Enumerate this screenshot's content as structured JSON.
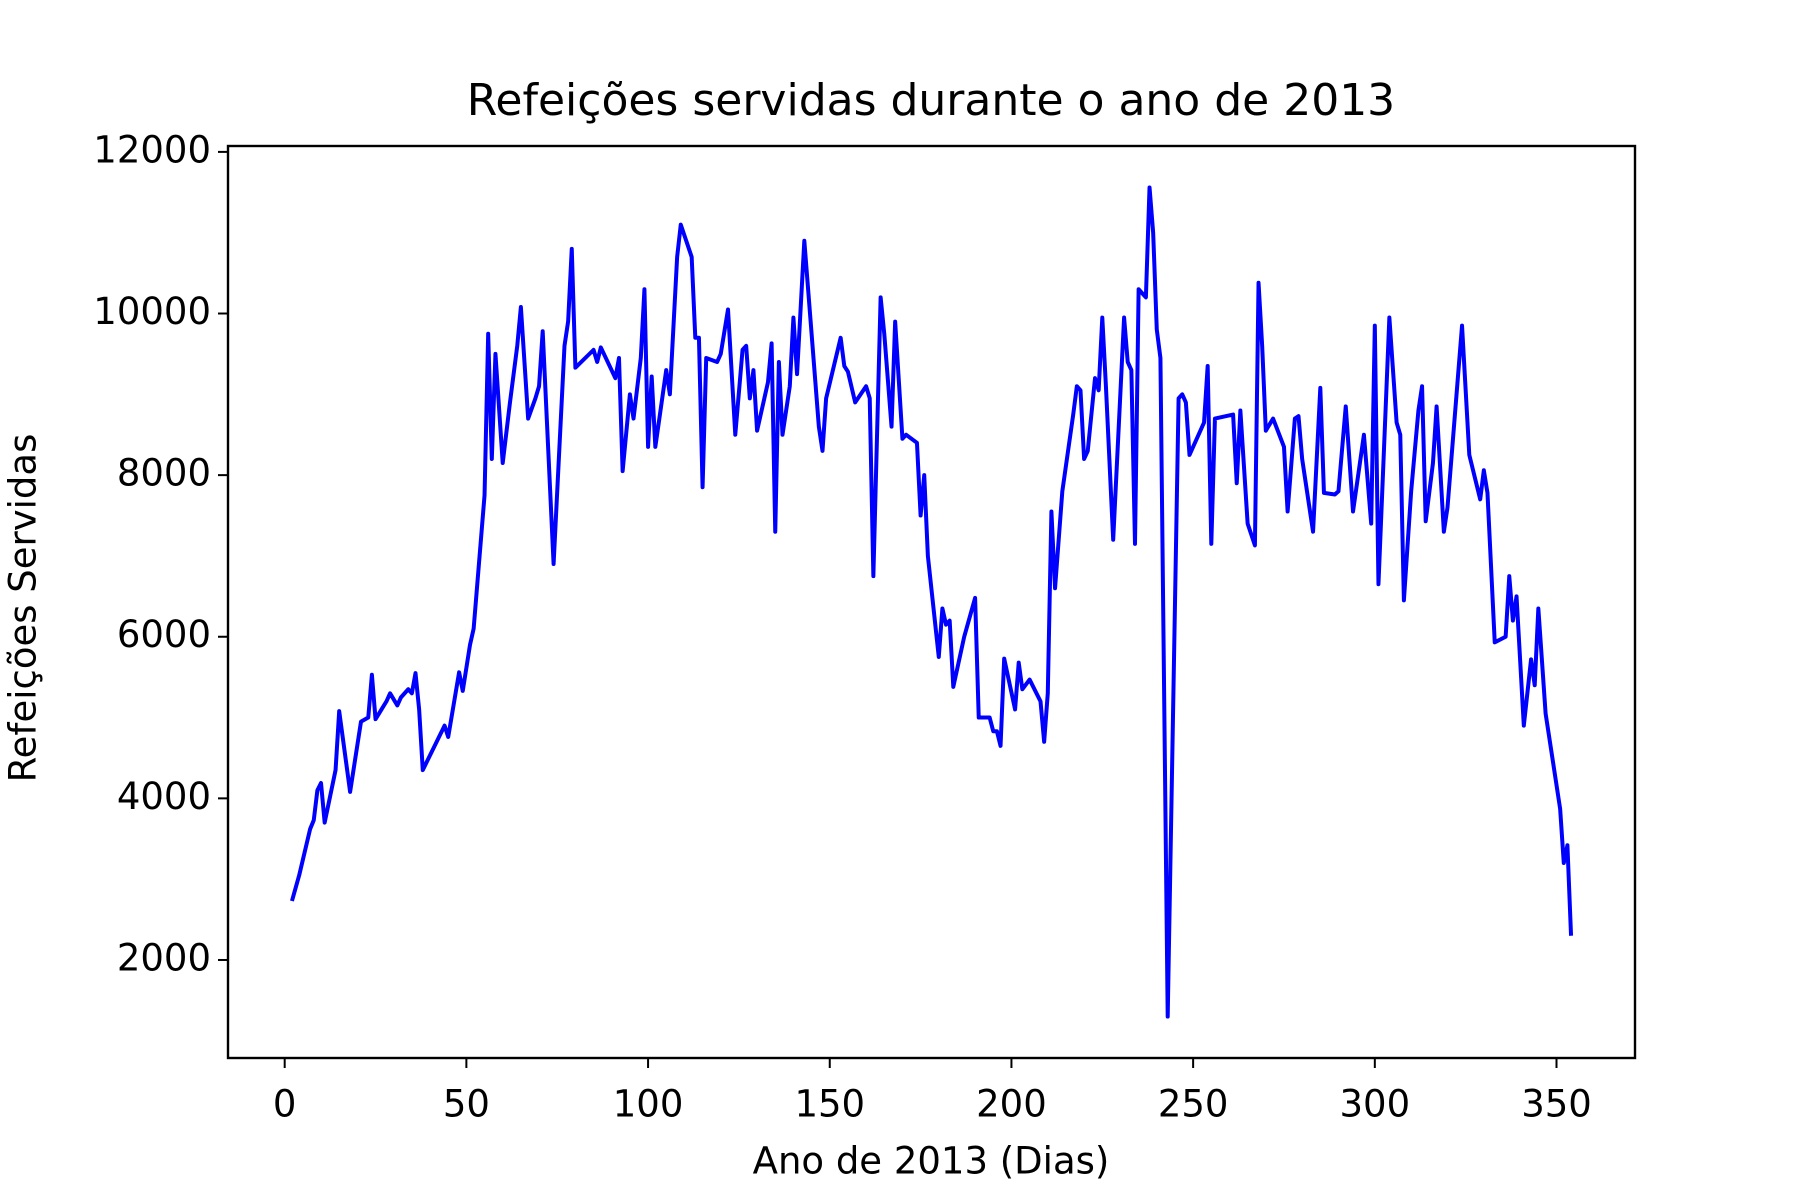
{
  "chart_data": {
    "type": "line",
    "title": "Refeições servidas durante o ano de 2013",
    "x_label": "Ano de 2013 (Dias)",
    "y_label": "Refeições Servidas",
    "x": [
      2,
      4,
      7,
      8,
      9,
      10,
      11,
      14,
      15,
      18,
      21,
      23,
      24,
      25,
      28,
      29,
      31,
      32,
      34,
      35,
      36,
      37,
      38,
      44,
      45,
      48,
      49,
      51,
      52,
      55,
      56,
      57,
      58,
      60,
      62,
      64,
      65,
      67,
      69,
      70,
      71,
      74,
      77,
      78,
      79,
      80,
      85,
      86,
      87,
      91,
      92,
      93,
      95,
      96,
      98,
      99,
      100,
      101,
      102,
      105,
      106,
      108,
      109,
      112,
      113,
      114,
      115,
      116,
      119,
      120,
      122,
      124,
      126,
      127,
      128,
      129,
      130,
      133,
      134,
      135,
      136,
      137,
      139,
      140,
      141,
      143,
      147,
      148,
      149,
      153,
      154,
      155,
      157,
      160,
      161,
      162,
      164,
      165,
      167,
      168,
      170,
      171,
      174,
      175,
      176,
      177,
      180,
      181,
      182,
      183,
      184,
      187,
      190,
      191,
      194,
      195,
      196,
      197,
      198,
      201,
      202,
      203,
      205,
      208,
      209,
      210,
      211,
      212,
      214,
      217,
      218,
      219,
      220,
      221,
      223,
      224,
      225,
      226,
      228,
      231,
      232,
      233,
      234,
      235,
      237,
      238,
      239,
      240,
      241,
      243,
      246,
      247,
      248,
      249,
      253,
      254,
      255,
      256,
      261,
      262,
      263,
      265,
      267,
      268,
      269,
      270,
      272,
      275,
      276,
      278,
      279,
      280,
      283,
      285,
      286,
      289,
      290,
      292,
      294,
      297,
      299,
      300,
      301,
      304,
      306,
      307,
      308,
      310,
      312,
      313,
      314,
      316,
      317,
      319,
      320,
      324,
      326,
      329,
      330,
      331,
      333,
      336,
      337,
      338,
      339,
      341,
      343,
      344,
      345,
      347,
      351,
      352,
      353,
      354
    ],
    "series": [
      {
        "name": "Refeições",
        "color": "#0000ff",
        "values": [
          2730,
          3050,
          3620,
          3730,
          4100,
          4190,
          3700,
          4350,
          5080,
          4080,
          4950,
          5000,
          5530,
          4980,
          5200,
          5300,
          5150,
          5250,
          5350,
          5300,
          5550,
          5100,
          4350,
          4900,
          4760,
          5560,
          5330,
          5900,
          6100,
          7750,
          9750,
          8200,
          9500,
          8150,
          8900,
          9600,
          10080,
          8700,
          8950,
          9100,
          9780,
          6900,
          9600,
          9900,
          10800,
          9330,
          9550,
          9400,
          9580,
          9200,
          9450,
          8050,
          9000,
          8700,
          9450,
          10300,
          8350,
          9220,
          8350,
          9300,
          9000,
          10700,
          11100,
          10700,
          9700,
          9700,
          7850,
          9450,
          9400,
          9500,
          10050,
          8500,
          9550,
          9600,
          8950,
          9300,
          8550,
          9150,
          9630,
          7300,
          9400,
          8500,
          9100,
          9950,
          9250,
          10900,
          8600,
          8300,
          8950,
          9700,
          9350,
          9280,
          8900,
          9100,
          8950,
          6750,
          10200,
          9750,
          8600,
          9900,
          8450,
          8500,
          8400,
          7500,
          8000,
          7000,
          5750,
          6350,
          6150,
          6200,
          5380,
          6000,
          6480,
          5000,
          5000,
          4830,
          4830,
          4650,
          5730,
          5100,
          5680,
          5350,
          5470,
          5200,
          4700,
          5300,
          7550,
          6600,
          7800,
          8750,
          9100,
          9050,
          8200,
          8300,
          9200,
          9050,
          9950,
          9100,
          7200,
          9950,
          9400,
          9300,
          7150,
          10300,
          10200,
          11560,
          11000,
          9800,
          9450,
          1300,
          8950,
          9000,
          8900,
          8250,
          8650,
          9350,
          7150,
          8700,
          8750,
          7900,
          8800,
          7400,
          7130,
          10380,
          9600,
          8550,
          8700,
          8350,
          7550,
          8700,
          8730,
          8200,
          7300,
          9080,
          7780,
          7760,
          7800,
          8850,
          7550,
          8500,
          7400,
          9850,
          6650,
          9950,
          8650,
          8500,
          6450,
          7800,
          8800,
          9100,
          7430,
          8150,
          8850,
          7300,
          7600,
          9850,
          8250,
          7700,
          8060,
          7780,
          5930,
          6000,
          6750,
          6200,
          6500,
          4900,
          5720,
          5400,
          6350,
          5050,
          3870,
          3200,
          3420,
          2300
        ]
      }
    ],
    "xlim": [
      -15.6,
      371.6
    ],
    "xticks": [
      0,
      50,
      100,
      150,
      200,
      250,
      300,
      350
    ],
    "ylim": [
      787,
      12073
    ],
    "yticks": [
      2000,
      4000,
      6000,
      8000,
      10000,
      12000
    ],
    "grid": false
  }
}
